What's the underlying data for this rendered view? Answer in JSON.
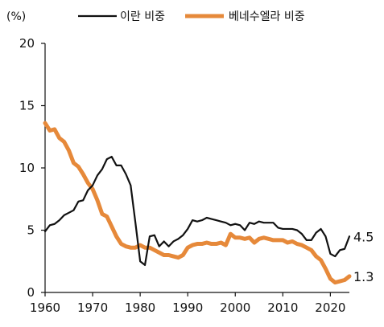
{
  "chart_data": {
    "type": "line",
    "unit_label": "(%)",
    "xlim": [
      1960,
      2024
    ],
    "ylim": [
      0,
      20
    ],
    "x_ticks": [
      1960,
      1970,
      1980,
      1990,
      2000,
      2010,
      2020
    ],
    "y_ticks": [
      0,
      5,
      10,
      15,
      20
    ],
    "grid": false,
    "legend_placement": "top",
    "series": [
      {
        "name": "이란 비중",
        "color": "#111111",
        "end_label": "4.5",
        "x": [
          1960,
          1961,
          1962,
          1963,
          1964,
          1965,
          1966,
          1967,
          1968,
          1969,
          1970,
          1971,
          1972,
          1973,
          1974,
          1975,
          1976,
          1977,
          1978,
          1979,
          1980,
          1981,
          1982,
          1983,
          1984,
          1985,
          1986,
          1987,
          1988,
          1989,
          1990,
          1991,
          1992,
          1993,
          1994,
          1995,
          1996,
          1997,
          1998,
          1999,
          2000,
          2001,
          2002,
          2003,
          2004,
          2005,
          2006,
          2007,
          2008,
          2009,
          2010,
          2011,
          2012,
          2013,
          2014,
          2015,
          2016,
          2017,
          2018,
          2019,
          2020,
          2021,
          2022,
          2023,
          2024
        ],
        "values": [
          4.9,
          5.4,
          5.5,
          5.8,
          6.2,
          6.4,
          6.6,
          7.3,
          7.4,
          8.2,
          8.6,
          9.4,
          9.9,
          10.7,
          10.9,
          10.2,
          10.2,
          9.5,
          8.6,
          5.6,
          2.5,
          2.2,
          4.5,
          4.6,
          3.7,
          4.1,
          3.7,
          4.1,
          4.3,
          4.6,
          5.1,
          5.8,
          5.7,
          5.8,
          6.0,
          5.9,
          5.8,
          5.7,
          5.6,
          5.4,
          5.5,
          5.4,
          5.0,
          5.6,
          5.5,
          5.7,
          5.6,
          5.6,
          5.6,
          5.2,
          5.1,
          5.1,
          5.1,
          5.0,
          4.7,
          4.2,
          4.2,
          4.8,
          5.1,
          4.5,
          3.1,
          2.9,
          3.4,
          3.5,
          4.5
        ]
      },
      {
        "name": "베네수엘라 비중",
        "color": "#e6893a",
        "end_label": "1.3",
        "x": [
          1960,
          1961,
          1962,
          1963,
          1964,
          1965,
          1966,
          1967,
          1968,
          1969,
          1970,
          1971,
          1972,
          1973,
          1974,
          1975,
          1976,
          1977,
          1978,
          1979,
          1980,
          1981,
          1982,
          1983,
          1984,
          1985,
          1986,
          1987,
          1988,
          1989,
          1990,
          1991,
          1992,
          1993,
          1994,
          1995,
          1996,
          1997,
          1998,
          1999,
          2000,
          2001,
          2002,
          2003,
          2004,
          2005,
          2006,
          2007,
          2008,
          2009,
          2010,
          2011,
          2012,
          2013,
          2014,
          2015,
          2016,
          2017,
          2018,
          2019,
          2020,
          2021,
          2022,
          2023,
          2024
        ],
        "values": [
          13.6,
          13.0,
          13.1,
          12.4,
          12.1,
          11.4,
          10.4,
          10.1,
          9.5,
          8.8,
          8.3,
          7.4,
          6.3,
          6.1,
          5.3,
          4.5,
          3.9,
          3.7,
          3.6,
          3.6,
          3.8,
          3.6,
          3.6,
          3.4,
          3.2,
          3.0,
          3.0,
          2.9,
          2.8,
          3.0,
          3.6,
          3.8,
          3.9,
          3.9,
          4.0,
          3.9,
          3.9,
          4.0,
          3.8,
          4.7,
          4.4,
          4.4,
          4.3,
          4.4,
          4.0,
          4.3,
          4.4,
          4.3,
          4.2,
          4.2,
          4.2,
          4.0,
          4.1,
          3.9,
          3.8,
          3.6,
          3.4,
          2.9,
          2.6,
          1.9,
          1.1,
          0.8,
          0.9,
          1.0,
          1.3
        ]
      }
    ]
  }
}
